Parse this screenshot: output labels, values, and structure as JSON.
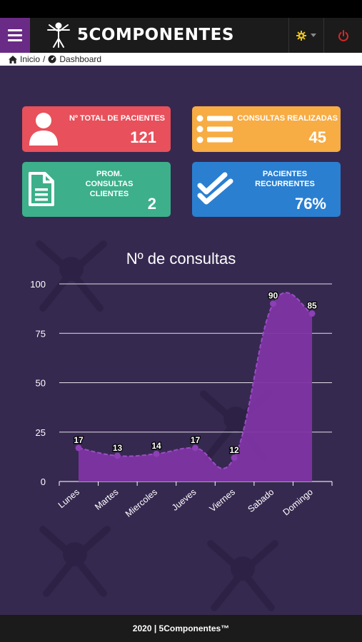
{
  "header": {
    "brand": "5COMPONENTES",
    "icons": {
      "menu": "menu-icon",
      "logo": "vitruvian-logo-icon",
      "settings": "gear-icon",
      "dropdown": "caret-down-icon",
      "power": "power-icon"
    }
  },
  "breadcrumb": {
    "home": "Inicio",
    "separator": "/",
    "current": "Dashboard"
  },
  "cards": [
    {
      "label": "Nº TOTAL DE PACIENTES",
      "value": "121",
      "color": "#e8505b",
      "icon": "user-icon"
    },
    {
      "label": "CONSULTAS REALIZADAS",
      "value": "45",
      "color": "#f7ac44",
      "icon": "list-icon"
    },
    {
      "label": "PROM. CONSULTAS CLIENTES",
      "value": "2",
      "color": "#3daf8a",
      "icon": "document-icon"
    },
    {
      "label": "PACIENTES RECURRENTES",
      "value": "76%",
      "color": "#2a7fd1",
      "icon": "double-check-icon"
    }
  ],
  "chart_data": {
    "type": "area",
    "title": "Nº de consultas",
    "categories": [
      "Lunes",
      "Martes",
      "Miercoles",
      "Jueves",
      "Viernes",
      "Sabado",
      "Domingo"
    ],
    "values": [
      17,
      13,
      14,
      17,
      12,
      90,
      85
    ],
    "ylim": [
      0,
      100
    ],
    "yticks": [
      0,
      25,
      50,
      75,
      100
    ],
    "color": "#7e34a3",
    "grid": true
  },
  "footer": {
    "text": "2020 | 5Componentes™"
  }
}
